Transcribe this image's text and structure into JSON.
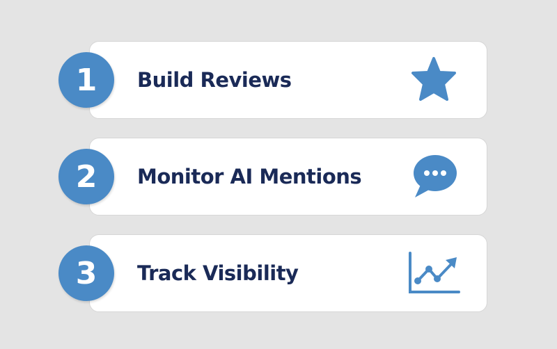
{
  "steps": [
    {
      "number": "1",
      "label": "Build Reviews",
      "icon": "star-icon"
    },
    {
      "number": "2",
      "label": "Monitor AI Mentions",
      "icon": "speech-bubble-icon"
    },
    {
      "number": "3",
      "label": "Track Visibility",
      "icon": "line-chart-icon"
    }
  ],
  "colors": {
    "accent": "#4a8ac6",
    "text": "#1a2a57",
    "background": "#e4e4e4"
  }
}
